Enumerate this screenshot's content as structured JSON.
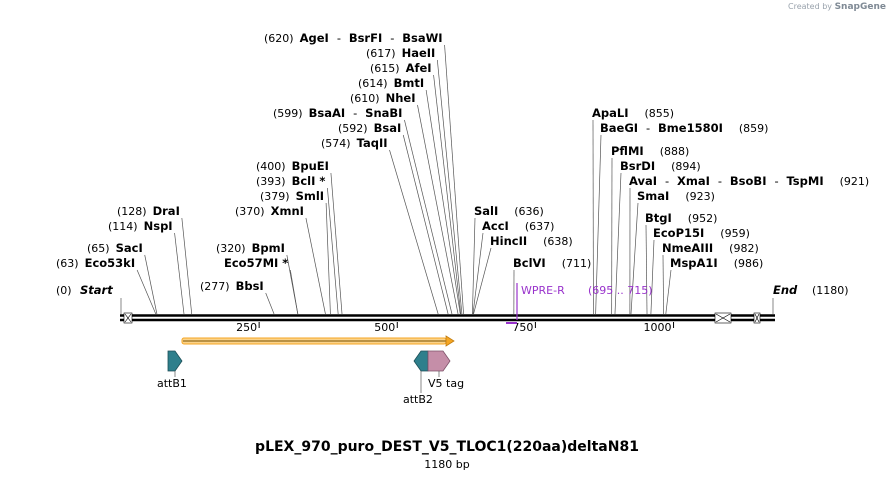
{
  "credit": {
    "created_by": "Created by",
    "brand": "SnapGene"
  },
  "map": {
    "title": "pLEX_970_puro_DEST_V5_TLOC1(220aa)deltaN81",
    "length_label": "1180 bp",
    "length_bp": 1180,
    "start_label": "Start",
    "start_pos": "(0)",
    "end_label": "End",
    "end_pos": "(1180)",
    "ticks": [
      {
        "bp": 250,
        "label": "250"
      },
      {
        "bp": 500,
        "label": "500"
      },
      {
        "bp": 750,
        "label": "750"
      },
      {
        "bp": 1000,
        "label": "1000"
      }
    ],
    "sites": [
      {
        "bp": 63,
        "pos": "(63)",
        "names": [
          "Eco53kI"
        ]
      },
      {
        "bp": 65,
        "pos": "(65)",
        "names": [
          "SacI"
        ]
      },
      {
        "bp": 114,
        "pos": "(114)",
        "names": [
          "NspI"
        ]
      },
      {
        "bp": 128,
        "pos": "(128)",
        "names": [
          "DraI"
        ]
      },
      {
        "bp": 277,
        "pos": "(277)",
        "names": [
          "BbsI"
        ]
      },
      {
        "bp": 320,
        "pos": "",
        "names": [
          "Eco57MI *"
        ]
      },
      {
        "bp": 320,
        "pos": "(320)",
        "names": [
          "BpmI"
        ]
      },
      {
        "bp": 370,
        "pos": "(370)",
        "names": [
          "XmnI"
        ]
      },
      {
        "bp": 379,
        "pos": "(379)",
        "names": [
          "SmlI"
        ]
      },
      {
        "bp": 393,
        "pos": "(393)",
        "names": [
          "BclI *"
        ]
      },
      {
        "bp": 400,
        "pos": "(400)",
        "names": [
          "BpuEI"
        ]
      },
      {
        "bp": 574,
        "pos": "(574)",
        "names": [
          "TaqII"
        ]
      },
      {
        "bp": 592,
        "pos": "(592)",
        "names": [
          "BsaI"
        ]
      },
      {
        "bp": 599,
        "pos": "(599)",
        "names": [
          "BsaAI",
          "SnaBI"
        ]
      },
      {
        "bp": 610,
        "pos": "(610)",
        "names": [
          "NheI"
        ]
      },
      {
        "bp": 614,
        "pos": "(614)",
        "names": [
          "BmtI"
        ]
      },
      {
        "bp": 615,
        "pos": "(615)",
        "names": [
          "AfeI"
        ]
      },
      {
        "bp": 617,
        "pos": "(617)",
        "names": [
          "HaeII"
        ]
      },
      {
        "bp": 620,
        "pos": "(620)",
        "names": [
          "AgeI",
          "BsrFI",
          "BsaWI"
        ]
      },
      {
        "bp": 636,
        "pos": "(636)",
        "names": [
          "SalI"
        ]
      },
      {
        "bp": 637,
        "pos": "(637)",
        "names": [
          "AccI"
        ]
      },
      {
        "bp": 638,
        "pos": "(638)",
        "names": [
          "HincII"
        ]
      },
      {
        "bp": 711,
        "pos": "(711)",
        "names": [
          "BclVI"
        ]
      },
      {
        "bp": 855,
        "pos": "(855)",
        "names": [
          "ApaLI"
        ]
      },
      {
        "bp": 859,
        "pos": "(859)",
        "names": [
          "BaeGI",
          "Bme1580I"
        ]
      },
      {
        "bp": 888,
        "pos": "(888)",
        "names": [
          "PflMI"
        ]
      },
      {
        "bp": 894,
        "pos": "(894)",
        "names": [
          "BsrDI"
        ]
      },
      {
        "bp": 921,
        "pos": "(921)",
        "names": [
          "AvaI",
          "XmaI",
          "BsoBI",
          "TspMI"
        ]
      },
      {
        "bp": 923,
        "pos": "(923)",
        "names": [
          "SmaI"
        ]
      },
      {
        "bp": 952,
        "pos": "(952)",
        "names": [
          "BtgI"
        ]
      },
      {
        "bp": 959,
        "pos": "(959)",
        "names": [
          "EcoP15I"
        ]
      },
      {
        "bp": 982,
        "pos": "(982)",
        "names": [
          "NmeAIII"
        ]
      },
      {
        "bp": 986,
        "pos": "(986)",
        "names": [
          "MspA1I"
        ]
      }
    ],
    "primer": {
      "name": "WPRE-R",
      "range": "(695 .. 715)",
      "color": "#9933cc"
    },
    "features": [
      {
        "name": "attB1",
        "bp": 100,
        "color": "#2e7f8c"
      },
      {
        "name": "attB2",
        "bp": 550,
        "color": "#2e7f8c"
      },
      {
        "name": "V5 tag",
        "bp": 580,
        "color": "#c58ea8"
      }
    ],
    "orf": {
      "from_bp": 110,
      "to_bp": 600,
      "color": "#f5a623"
    },
    "colors": {
      "backbone": "#000000",
      "leader": "#555555"
    }
  }
}
